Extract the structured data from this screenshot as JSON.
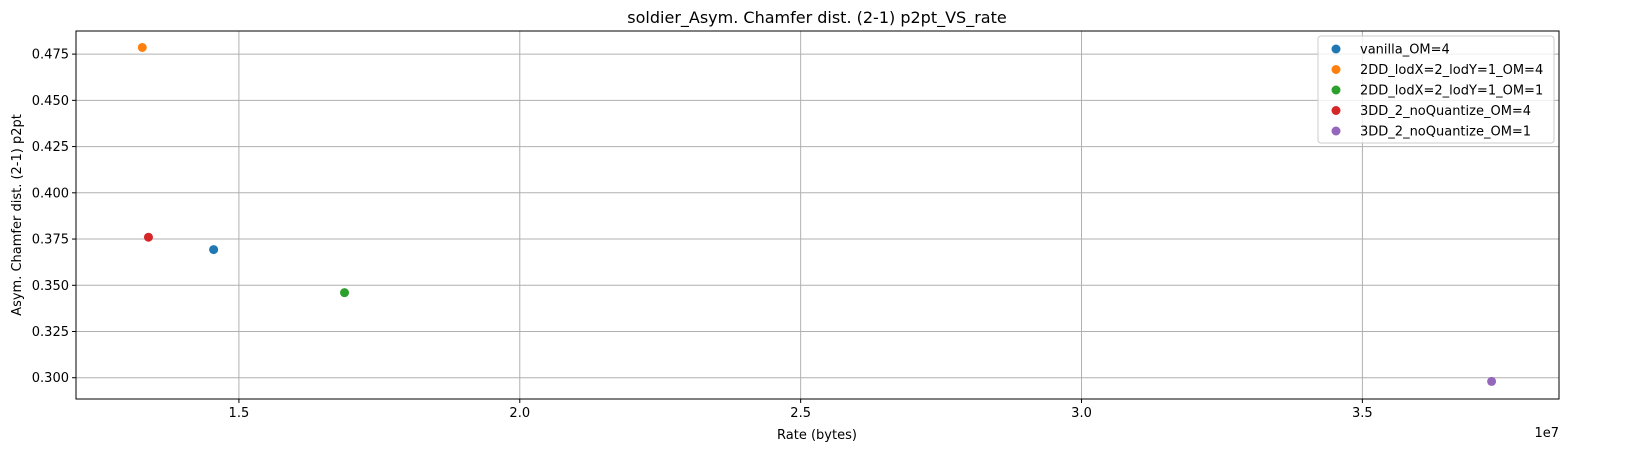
{
  "chart_data": {
    "type": "scatter",
    "title": "soldier_Asym. Chamfer dist. (2-1) p2pt_VS_rate",
    "xlabel": "Rate (bytes)",
    "ylabel": "Asym. Chamfer dist. (2-1) p2pt",
    "x_offset_label": "1e7",
    "xlim": [
      12100000.0,
      38500000.0
    ],
    "ylim": [
      0.2885,
      0.4875
    ],
    "x_ticks": [
      15000000,
      20000000,
      25000000,
      30000000,
      35000000
    ],
    "x_tick_labels": [
      "1.5",
      "2.0",
      "2.5",
      "3.0",
      "3.5"
    ],
    "y_ticks": [
      0.3,
      0.325,
      0.35,
      0.375,
      0.4,
      0.425,
      0.45,
      0.475
    ],
    "y_tick_labels": [
      "0.300",
      "0.325",
      "0.350",
      "0.375",
      "0.400",
      "0.425",
      "0.450",
      "0.475"
    ],
    "grid": true,
    "legend_position": "top-right",
    "series": [
      {
        "name": "vanilla_OM=4",
        "color": "#1f77b4",
        "points": [
          {
            "x": 14550000,
            "y": 0.3693
          }
        ]
      },
      {
        "name": "2DD_lodX=2_lodY=1_OM=4",
        "color": "#ff7f0e",
        "points": [
          {
            "x": 13280000,
            "y": 0.4786
          }
        ]
      },
      {
        "name": "2DD_lodX=2_lodY=1_OM=1",
        "color": "#2ca02c",
        "points": [
          {
            "x": 16880000,
            "y": 0.346
          }
        ]
      },
      {
        "name": "3DD_2_noQuantize_OM=4",
        "color": "#d62728",
        "points": [
          {
            "x": 13390000,
            "y": 0.376
          }
        ]
      },
      {
        "name": "3DD_2_noQuantize_OM=1",
        "color": "#9467bd",
        "points": [
          {
            "x": 37300000,
            "y": 0.298
          }
        ]
      }
    ]
  }
}
